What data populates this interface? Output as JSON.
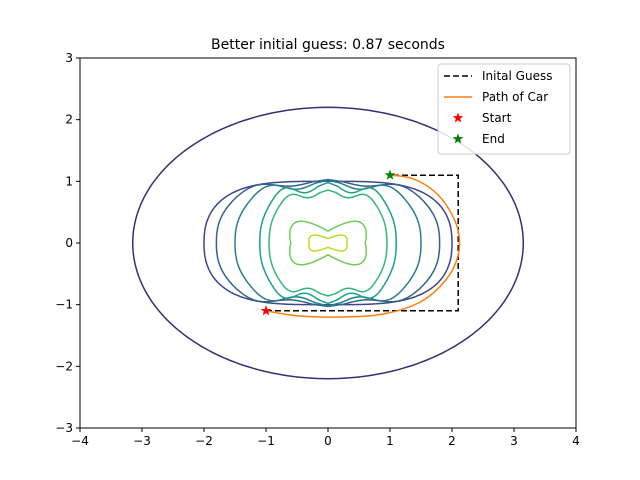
{
  "chart_data": {
    "type": "line",
    "title": "Better initial guess: 0.87 seconds",
    "xlabel": "",
    "ylabel": "",
    "xlim": [
      -4,
      4
    ],
    "ylim": [
      -3,
      3
    ],
    "xticks": [
      -4,
      -3,
      -2,
      -1,
      0,
      1,
      2,
      3,
      4
    ],
    "yticks": [
      -3,
      -2,
      -1,
      0,
      1,
      2,
      3
    ],
    "grid": false,
    "legend_position": "top-right",
    "series": [
      {
        "name": "Inital Guess",
        "style": "dashed",
        "color": "#000000",
        "x": [
          -1,
          2.1,
          2.1,
          1
        ],
        "y": [
          -1.1,
          -1.1,
          1.1,
          1.1
        ]
      },
      {
        "name": "Path of Car",
        "style": "solid",
        "color": "#ff7f0e",
        "x": [
          -1.0,
          -0.5,
          0.2,
          0.9,
          1.5,
          1.9,
          2.1,
          2.1,
          1.95,
          1.7,
          1.35,
          1.0
        ],
        "y": [
          -1.1,
          -1.18,
          -1.2,
          -1.15,
          -0.95,
          -0.6,
          -0.2,
          0.2,
          0.55,
          0.85,
          1.05,
          1.1
        ]
      },
      {
        "name": "Start",
        "style": "marker",
        "marker": "star",
        "color": "#ff0000",
        "x": [
          -1.0
        ],
        "y": [
          -1.1
        ]
      },
      {
        "name": "End",
        "style": "marker",
        "marker": "star",
        "color": "#008000",
        "x": [
          1.0
        ],
        "y": [
          1.1
        ]
      }
    ],
    "contours": [
      {
        "color": "#3f2a78",
        "kind": "ellipse",
        "a": 3.15,
        "b": 2.2
      },
      {
        "color": "#3f4788",
        "kind": "stadium",
        "a": 2.0,
        "b": 1.0,
        "r": 1.0
      },
      {
        "color": "#33638d",
        "kind": "stadium",
        "a": 1.8,
        "b": 0.98,
        "r": 0.98,
        "wave": 0.05
      },
      {
        "color": "#277f8e",
        "kind": "stadium",
        "a": 1.5,
        "b": 0.95,
        "r": 0.95,
        "wave": 0.07
      },
      {
        "color": "#1f9e89",
        "kind": "stadium",
        "a": 1.1,
        "b": 0.9,
        "r": 0.8,
        "wave": 0.08
      },
      {
        "color": "#35b779",
        "kind": "stadium",
        "a": 0.95,
        "b": 0.8,
        "r": 0.6,
        "wave": 0.06
      },
      {
        "color": "#6ece58",
        "kind": "butterfly",
        "a": 0.6,
        "b": 0.55
      },
      {
        "color": "#b5de2b",
        "kind": "butterfly",
        "a": 0.3,
        "b": 0.2
      }
    ]
  }
}
